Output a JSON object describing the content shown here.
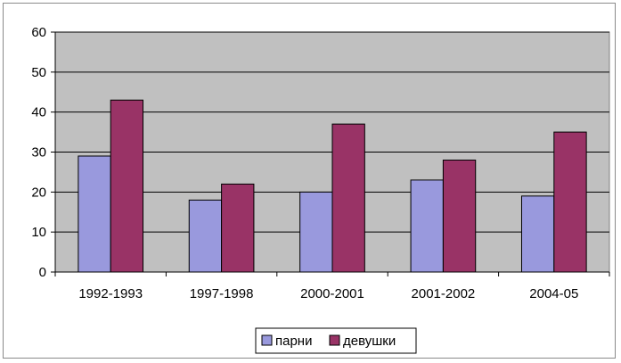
{
  "chart_data": {
    "type": "bar",
    "categories": [
      "1992-1993",
      "1997-1998",
      "2000-2001",
      "2001-2002",
      "2004-05"
    ],
    "series": [
      {
        "name": "парни",
        "values": [
          29,
          18,
          20,
          23,
          19
        ],
        "color": "#9999dd"
      },
      {
        "name": "девушки",
        "values": [
          43,
          22,
          37,
          28,
          35
        ],
        "color": "#993366"
      }
    ],
    "ylim": [
      0,
      60
    ],
    "yticks": [
      "0",
      "10",
      "20",
      "30",
      "40",
      "50",
      "60"
    ],
    "grid": true,
    "plot_background": "#c0c0c0",
    "legend_position": "bottom"
  }
}
